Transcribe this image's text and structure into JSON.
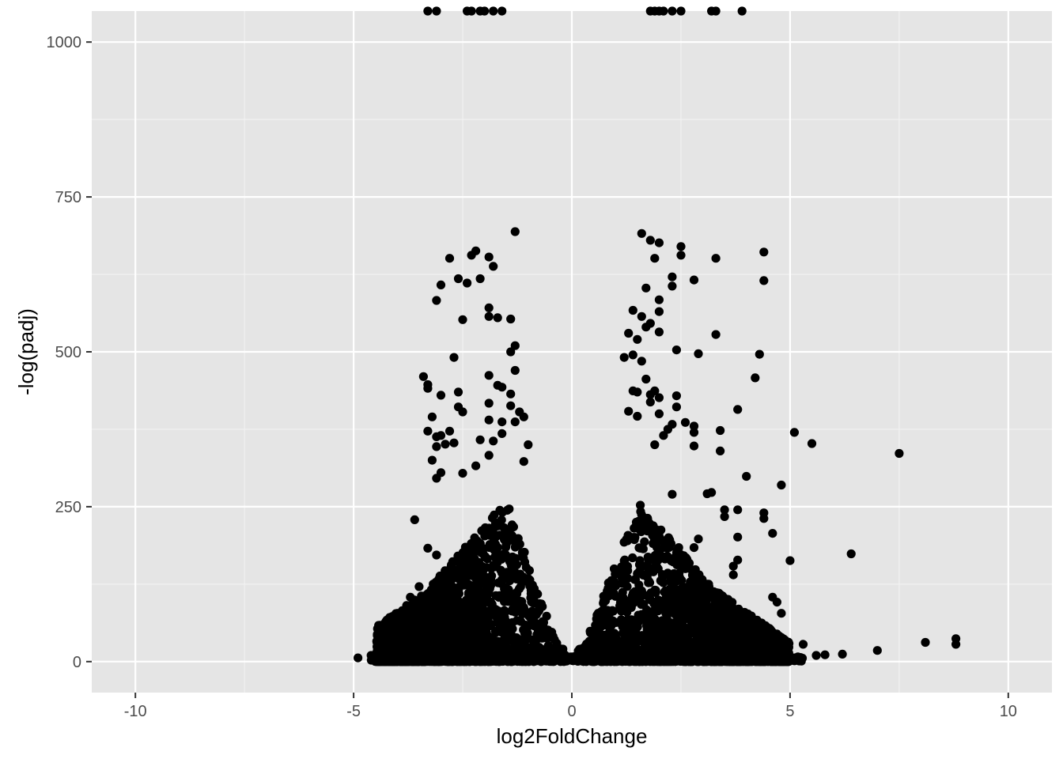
{
  "chart_data": {
    "type": "scatter",
    "title": "",
    "xlabel": "log2FoldChange",
    "ylabel": "-log(padj)",
    "xlim": [
      -11,
      11
    ],
    "ylim": [
      -50,
      1050
    ],
    "x_ticks": [
      {
        "value": -10,
        "label": "-10"
      },
      {
        "value": -5,
        "label": "-5"
      },
      {
        "value": 0,
        "label": "0"
      },
      {
        "value": 5,
        "label": "5"
      },
      {
        "value": 10,
        "label": "10"
      }
    ],
    "y_ticks": [
      {
        "value": 0,
        "label": "0"
      },
      {
        "value": 250,
        "label": "250"
      },
      {
        "value": 500,
        "label": "500"
      },
      {
        "value": 750,
        "label": "750"
      },
      {
        "value": 1000,
        "label": "1000"
      }
    ],
    "grid": true,
    "colors": {
      "panel_background": "#e5e5e5",
      "grid_major": "#ffffff",
      "grid_minor": "#f2f2f2",
      "point": "#000000",
      "tick": "#333333"
    },
    "points": [
      [
        -3.3,
        1050
      ],
      [
        -3.1,
        1050
      ],
      [
        -2.4,
        1050
      ],
      [
        -2.3,
        1050
      ],
      [
        -2.1,
        1050
      ],
      [
        -2.0,
        1050
      ],
      [
        -1.8,
        1050
      ],
      [
        -1.6,
        1050
      ],
      [
        1.8,
        1050
      ],
      [
        1.9,
        1050
      ],
      [
        2.0,
        1050
      ],
      [
        2.1,
        1050
      ],
      [
        2.3,
        1050
      ],
      [
        2.5,
        1050
      ],
      [
        3.2,
        1050
      ],
      [
        3.3,
        1050
      ],
      [
        3.9,
        1050
      ],
      [
        -1.3,
        694
      ],
      [
        -2.2,
        663
      ],
      [
        -2.3,
        656
      ],
      [
        -1.9,
        653
      ],
      [
        -2.8,
        651
      ],
      [
        -1.8,
        638
      ],
      [
        -2.6,
        618
      ],
      [
        -2.1,
        618
      ],
      [
        -2.4,
        611
      ],
      [
        -3.0,
        608
      ],
      [
        -3.1,
        583
      ],
      [
        -1.9,
        571
      ],
      [
        -1.9,
        557
      ],
      [
        -1.7,
        555
      ],
      [
        -1.4,
        553
      ],
      [
        -2.5,
        552
      ],
      [
        -1.3,
        510
      ],
      [
        -1.4,
        500
      ],
      [
        -2.7,
        491
      ],
      [
        -1.3,
        470
      ],
      [
        -1.9,
        462
      ],
      [
        -3.4,
        460
      ],
      [
        -3.3,
        447
      ],
      [
        -3.3,
        441
      ],
      [
        -1.7,
        446
      ],
      [
        -1.6,
        443
      ],
      [
        -2.6,
        435
      ],
      [
        -1.4,
        432
      ],
      [
        -3.0,
        430
      ],
      [
        -1.9,
        417
      ],
      [
        -1.4,
        413
      ],
      [
        -2.6,
        411
      ],
      [
        -1.2,
        403
      ],
      [
        -2.5,
        403
      ],
      [
        -1.1,
        395
      ],
      [
        -3.2,
        395
      ],
      [
        -1.9,
        390
      ],
      [
        -1.6,
        387
      ],
      [
        -1.3,
        387
      ],
      [
        -2.8,
        372
      ],
      [
        -3.3,
        372
      ],
      [
        -1.6,
        368
      ],
      [
        -2.1,
        358
      ],
      [
        -3.0,
        365
      ],
      [
        -3.1,
        363
      ],
      [
        -1.8,
        356
      ],
      [
        -1.0,
        350
      ],
      [
        -2.7,
        353
      ],
      [
        -2.9,
        351
      ],
      [
        -3.1,
        347
      ],
      [
        -1.9,
        333
      ],
      [
        -3.2,
        325
      ],
      [
        -1.1,
        323
      ],
      [
        -3.0,
        305
      ],
      [
        -2.2,
        316
      ],
      [
        -3.1,
        296
      ],
      [
        -2.5,
        304
      ],
      [
        -3.6,
        229
      ],
      [
        -3.5,
        121
      ],
      [
        -3.7,
        104
      ],
      [
        -3.3,
        183
      ],
      [
        -3.1,
        172
      ],
      [
        1.6,
        691
      ],
      [
        1.8,
        680
      ],
      [
        2.0,
        676
      ],
      [
        2.5,
        670
      ],
      [
        4.4,
        661
      ],
      [
        2.5,
        656
      ],
      [
        1.9,
        651
      ],
      [
        3.3,
        651
      ],
      [
        2.3,
        621
      ],
      [
        2.8,
        616
      ],
      [
        4.4,
        615
      ],
      [
        2.3,
        606
      ],
      [
        1.7,
        603
      ],
      [
        2.0,
        584
      ],
      [
        1.4,
        567
      ],
      [
        2.0,
        565
      ],
      [
        1.6,
        557
      ],
      [
        1.8,
        546
      ],
      [
        1.7,
        540
      ],
      [
        2.0,
        532
      ],
      [
        3.3,
        528
      ],
      [
        1.3,
        530
      ],
      [
        1.5,
        520
      ],
      [
        2.4,
        503
      ],
      [
        2.9,
        497
      ],
      [
        4.3,
        496
      ],
      [
        1.4,
        495
      ],
      [
        1.2,
        491
      ],
      [
        1.6,
        485
      ],
      [
        4.2,
        458
      ],
      [
        1.7,
        456
      ],
      [
        1.9,
        437
      ],
      [
        1.8,
        431
      ],
      [
        2.4,
        429
      ],
      [
        2.0,
        426
      ],
      [
        1.5,
        435
      ],
      [
        1.4,
        437
      ],
      [
        1.8,
        419
      ],
      [
        2.4,
        411
      ],
      [
        3.8,
        407
      ],
      [
        2.0,
        400
      ],
      [
        1.3,
        404
      ],
      [
        1.5,
        396
      ],
      [
        2.6,
        386
      ],
      [
        2.3,
        383
      ],
      [
        2.8,
        380
      ],
      [
        2.8,
        370
      ],
      [
        2.2,
        375
      ],
      [
        3.4,
        373
      ],
      [
        5.1,
        370
      ],
      [
        5.5,
        352
      ],
      [
        2.1,
        365
      ],
      [
        1.9,
        350
      ],
      [
        2.8,
        348
      ],
      [
        3.4,
        340
      ],
      [
        7.5,
        336
      ],
      [
        4.0,
        299
      ],
      [
        4.8,
        285
      ],
      [
        3.2,
        273
      ],
      [
        3.1,
        271
      ],
      [
        2.3,
        270
      ],
      [
        3.5,
        245
      ],
      [
        3.8,
        245
      ],
      [
        4.4,
        240
      ],
      [
        3.5,
        234
      ],
      [
        4.4,
        231
      ],
      [
        4.6,
        207
      ],
      [
        3.8,
        201
      ],
      [
        2.9,
        198
      ],
      [
        6.4,
        174
      ],
      [
        2.8,
        184
      ],
      [
        5.0,
        163
      ],
      [
        3.8,
        164
      ],
      [
        3.7,
        154
      ],
      [
        2.6,
        150
      ],
      [
        3.7,
        140
      ],
      [
        3.1,
        125
      ],
      [
        4.6,
        104
      ],
      [
        4.7,
        96
      ],
      [
        4.8,
        78
      ],
      [
        3.9,
        79
      ],
      [
        3.6,
        77
      ],
      [
        2.7,
        80
      ],
      [
        3.8,
        64
      ],
      [
        2.9,
        76
      ],
      [
        3.3,
        62
      ],
      [
        3.9,
        44
      ],
      [
        3.3,
        48
      ],
      [
        2.9,
        41
      ],
      [
        4.8,
        39
      ],
      [
        4.8,
        36
      ],
      [
        5.3,
        28
      ],
      [
        5.6,
        10
      ],
      [
        5.8,
        11
      ],
      [
        6.2,
        12
      ],
      [
        7.0,
        18
      ],
      [
        8.1,
        31
      ],
      [
        8.8,
        37
      ],
      [
        8.8,
        28
      ],
      [
        -4.9,
        6
      ],
      [
        -4.6,
        10
      ],
      [
        -4.2,
        9
      ],
      [
        -4.0,
        20
      ],
      [
        -3.7,
        33
      ],
      [
        -3.9,
        13
      ],
      [
        -4.4,
        4
      ]
    ],
    "cloud_left": {
      "x_min": -4.6,
      "x_max": -0.1,
      "note_density": "dense"
    },
    "cloud_right": {
      "x_min": 0.1,
      "x_max": 5.2,
      "note_density": "dense"
    }
  }
}
